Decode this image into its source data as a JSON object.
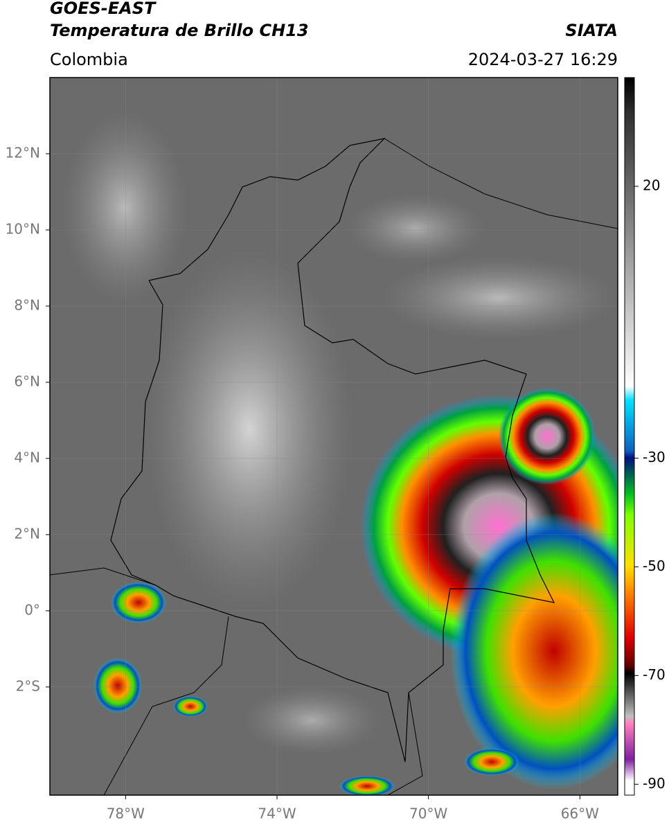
{
  "header": {
    "title": "GOES-EAST",
    "subtitle": "Temperatura de Brillo CH13",
    "region": "Colombia",
    "source": "SIATA",
    "timestamp": "2024-03-27 16:29"
  },
  "map": {
    "xlim": [
      -80,
      -65
    ],
    "ylim": [
      -4.84,
      14
    ],
    "xticks": [
      {
        "value": -78,
        "label": "78°W"
      },
      {
        "value": -74,
        "label": "74°W"
      },
      {
        "value": -70,
        "label": "70°W"
      },
      {
        "value": -66,
        "label": "66°W"
      }
    ],
    "yticks": [
      {
        "value": 12,
        "label": "12°N"
      },
      {
        "value": 10,
        "label": "10°N"
      },
      {
        "value": 8,
        "label": "8°N"
      },
      {
        "value": 6,
        "label": "6°N"
      },
      {
        "value": 4,
        "label": "4°N"
      },
      {
        "value": 2,
        "label": "2°N"
      },
      {
        "value": 0,
        "label": "0°"
      },
      {
        "value": -2,
        "label": "2°S"
      }
    ],
    "grid": true
  },
  "colorbar": {
    "lim": [
      -92,
      40
    ],
    "ticks": [
      20,
      -30,
      -50,
      -70,
      -90
    ]
  }
}
